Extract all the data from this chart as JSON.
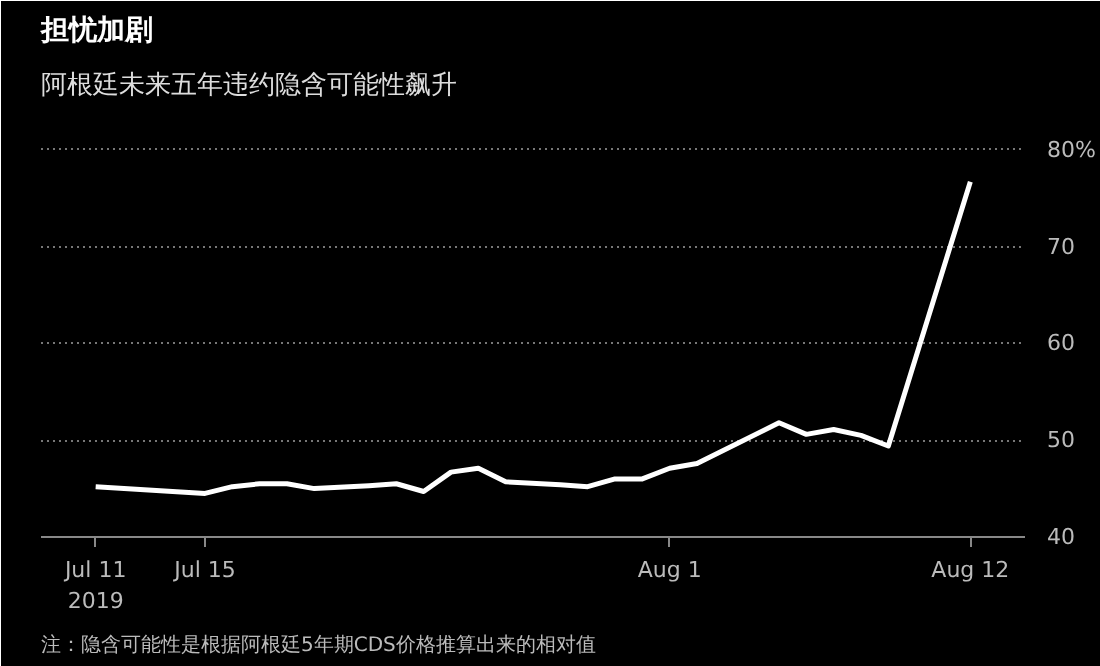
{
  "chart_data": {
    "type": "line",
    "title": "担忧加剧",
    "subtitle": "阿根廷未来五年违约隐含可能性飙升",
    "x": [
      "2019-07-11",
      "2019-07-15",
      "2019-07-16",
      "2019-07-17",
      "2019-07-18",
      "2019-07-19",
      "2019-07-21",
      "2019-07-22",
      "2019-07-23",
      "2019-07-24",
      "2019-07-25",
      "2019-07-26",
      "2019-07-28",
      "2019-07-29",
      "2019-07-30",
      "2019-07-31",
      "2019-08-01",
      "2019-08-02",
      "2019-08-05",
      "2019-08-06",
      "2019-08-07",
      "2019-08-08",
      "2019-08-09",
      "2019-08-12"
    ],
    "series": [
      {
        "color": "#ffffff",
        "values": [
          45.2,
          44.5,
          45.2,
          45.5,
          45.5,
          45.0,
          45.3,
          45.5,
          44.7,
          46.7,
          47.1,
          45.7,
          45.4,
          45.2,
          46.0,
          46.0,
          47.1,
          47.6,
          51.8,
          50.6,
          51.1,
          50.5,
          49.4,
          76.7
        ]
      }
    ],
    "xlim": [
      "2019-07-09",
      "2019-08-14"
    ],
    "ylim": [
      40,
      84
    ],
    "xticks": [
      {
        "value": "2019-07-11",
        "label": "Jul 11\n2019"
      },
      {
        "value": "2019-07-15",
        "label": "Jul 15"
      },
      {
        "value": "2019-08-01",
        "label": "Aug 1"
      },
      {
        "value": "2019-08-12",
        "label": "Aug 12"
      }
    ],
    "yticks": [
      40,
      50,
      60,
      70,
      {
        "value": 80,
        "label": "80%"
      }
    ],
    "grid": "y",
    "marker": "none",
    "line_style": "solid",
    "annotations": [
      "注：隐含可能性是根据阿根廷5年期CDS价格推算出来的相对值"
    ]
  }
}
